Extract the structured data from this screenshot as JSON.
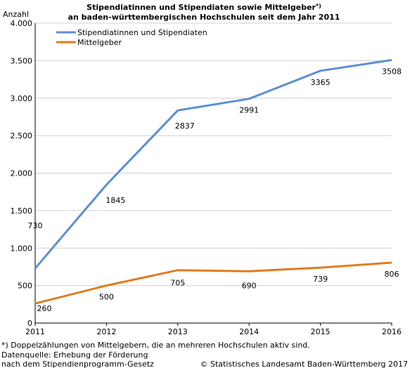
{
  "chart_data": {
    "type": "line",
    "title_line1": "Stipendiatinnen und Stipendiaten sowie Mittelgeber",
    "title_sup": "*)",
    "title_line2": "an baden-württembergischen Hochschulen seit dem Jahr 2011",
    "ylabel": "Anzahl",
    "xlabel": "",
    "x": [
      "2011",
      "2012",
      "2013",
      "2014",
      "2015",
      "2016"
    ],
    "ylim": [
      0,
      4000
    ],
    "yticks": [
      0,
      500,
      1000,
      1500,
      2000,
      2500,
      3000,
      3500,
      4000
    ],
    "ytick_labels": [
      "0",
      "500",
      "1.000",
      "1.500",
      "2.000",
      "2.500",
      "3.000",
      "3.500",
      "4.000"
    ],
    "grid": "horizontal",
    "legend_position": "top-left",
    "series": [
      {
        "name": "Stipendiatinnen und Stipendiaten",
        "color": "#5b8fd4",
        "values": [
          730,
          1845,
          2837,
          2991,
          3365,
          3508
        ],
        "labels": [
          "730",
          "1845",
          "2837",
          "2991",
          "3365",
          "3508"
        ]
      },
      {
        "name": "Mittelgeber",
        "color": "#e07b1f",
        "values": [
          260,
          500,
          705,
          690,
          739,
          806
        ],
        "labels": [
          "260",
          "500",
          "705",
          "690",
          "739",
          "806"
        ]
      }
    ]
  },
  "footer": {
    "note": "*) Doppelzählungen von Mittelgebern, die an mehreren Hochschulen aktiv sind.",
    "source_line1": "Datenquelle: Erhebung der Förderung",
    "source_line2": "nach dem Stipendienprogramm-Gesetz",
    "copyright": "© Statistisches Landesamt Baden-Württemberg 2017"
  }
}
